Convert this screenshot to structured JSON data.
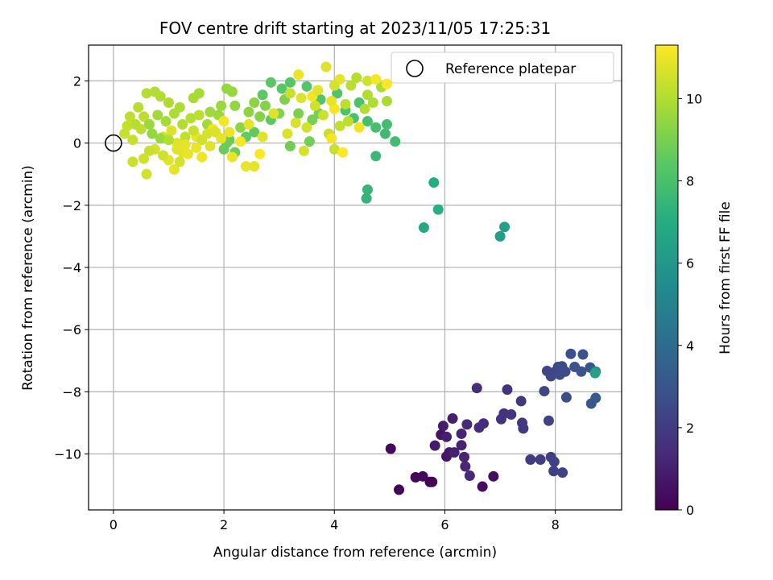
{
  "chart_data": {
    "type": "scatter",
    "title": "FOV centre drift starting at 2023/11/05 17:25:31",
    "xlabel": "Angular distance from reference (arcmin)",
    "ylabel": "Rotation from reference (arcmin)",
    "xlim": [
      -0.45,
      9.2
    ],
    "ylim": [
      -11.8,
      3.15
    ],
    "xticks": [
      0,
      2,
      4,
      6,
      8
    ],
    "yticks": [
      -10,
      -8,
      -6,
      -4,
      -2,
      0,
      2
    ],
    "grid": true,
    "legend": {
      "placement": "top-right",
      "entries": [
        "Reference platepar"
      ]
    },
    "colorbar": {
      "label": "Hours from first FF file",
      "min": 0,
      "max": 11.3,
      "ticks": [
        0,
        2,
        4,
        6,
        8,
        10
      ],
      "colormap": "viridis"
    },
    "reference_point": {
      "x": 0,
      "y": 0
    },
    "series": [
      {
        "points": [
          [
            5.17,
            -11.15,
            0.05
          ],
          [
            5.73,
            -10.9,
            0.1
          ],
          [
            5.77,
            -10.9,
            0.12
          ],
          [
            5.47,
            -10.75,
            0.2
          ],
          [
            5.6,
            -10.72,
            0.25
          ],
          [
            6.68,
            -11.05,
            0.4
          ],
          [
            6.88,
            -10.72,
            0.45
          ],
          [
            5.02,
            -9.83,
            0.3
          ],
          [
            5.93,
            -9.38,
            0.6
          ],
          [
            6.03,
            -10.08,
            0.7
          ],
          [
            6.08,
            -9.95,
            0.75
          ],
          [
            5.82,
            -9.73,
            0.8
          ],
          [
            5.97,
            -9.1,
            0.9
          ],
          [
            6.03,
            -9.45,
            0.95
          ],
          [
            6.14,
            -8.86,
            1.0
          ],
          [
            6.17,
            -9.95,
            1.05
          ],
          [
            6.3,
            -9.72,
            1.1
          ],
          [
            6.3,
            -9.35,
            1.15
          ],
          [
            6.35,
            -10.1,
            1.2
          ],
          [
            6.37,
            -10.4,
            1.25
          ],
          [
            6.45,
            -10.7,
            1.3
          ],
          [
            6.4,
            -9.05,
            1.35
          ],
          [
            6.58,
            -7.88,
            1.4
          ],
          [
            6.62,
            -9.15,
            1.45
          ],
          [
            6.7,
            -9.02,
            1.5
          ],
          [
            7.02,
            -8.88,
            1.6
          ],
          [
            7.07,
            -8.7,
            1.65
          ],
          [
            7.13,
            -7.93,
            1.7
          ],
          [
            7.2,
            -8.73,
            1.75
          ],
          [
            7.38,
            -8.3,
            1.8
          ],
          [
            7.4,
            -9.0,
            1.85
          ],
          [
            7.42,
            -9.18,
            1.9
          ],
          [
            7.55,
            -10.18,
            2.0
          ],
          [
            7.73,
            -10.18,
            2.05
          ],
          [
            7.92,
            -10.1,
            2.1
          ],
          [
            7.97,
            -10.55,
            2.15
          ],
          [
            7.98,
            -10.25,
            2.2
          ],
          [
            8.13,
            -10.6,
            2.25
          ],
          [
            7.88,
            -8.93,
            2.3
          ],
          [
            7.8,
            -7.98,
            2.35
          ],
          [
            7.85,
            -7.33,
            2.4
          ],
          [
            7.92,
            -7.5,
            2.45
          ],
          [
            8.0,
            -7.35,
            2.5
          ],
          [
            8.05,
            -7.2,
            2.55
          ],
          [
            8.08,
            -7.45,
            2.6
          ],
          [
            8.12,
            -7.18,
            2.65
          ],
          [
            8.18,
            -7.35,
            2.7
          ],
          [
            8.2,
            -8.18,
            2.75
          ],
          [
            8.28,
            -6.78,
            2.8
          ],
          [
            8.35,
            -7.2,
            2.85
          ],
          [
            8.47,
            -7.35,
            2.9
          ],
          [
            8.5,
            -6.8,
            2.95
          ],
          [
            8.63,
            -7.22,
            3.0
          ],
          [
            8.65,
            -8.38,
            3.05
          ],
          [
            8.73,
            -8.2,
            3.1
          ],
          [
            8.73,
            -7.35,
            5.4
          ],
          [
            8.72,
            -7.4,
            6.5
          ],
          [
            7.0,
            -3.0,
            6.3
          ],
          [
            7.08,
            -2.7,
            6.4
          ],
          [
            5.62,
            -2.72,
            6.8
          ],
          [
            5.8,
            -1.27,
            7.0
          ],
          [
            5.88,
            -2.14,
            7.1
          ],
          [
            4.58,
            -1.78,
            7.4
          ],
          [
            4.6,
            -1.5,
            7.5
          ],
          [
            4.75,
            -0.42,
            7.6
          ],
          [
            4.92,
            0.3,
            7.7
          ],
          [
            5.1,
            0.05,
            7.8
          ],
          [
            4.95,
            0.6,
            7.85
          ],
          [
            4.75,
            0.5,
            7.9
          ],
          [
            4.6,
            0.7,
            7.95
          ],
          [
            4.35,
            0.8,
            8.0
          ],
          [
            4.45,
            1.3,
            8.05
          ],
          [
            4.2,
            1.05,
            8.1
          ],
          [
            4.05,
            1.6,
            8.15
          ],
          [
            3.75,
            1.4,
            8.2
          ],
          [
            3.5,
            1.82,
            8.25
          ],
          [
            3.2,
            1.95,
            8.3
          ],
          [
            3.05,
            1.75,
            8.35
          ],
          [
            2.85,
            1.95,
            8.4
          ],
          [
            2.7,
            1.55,
            8.45
          ],
          [
            2.85,
            0.75,
            8.5
          ],
          [
            2.55,
            0.35,
            8.55
          ],
          [
            2.4,
            0.2,
            8.6
          ],
          [
            2.1,
            0.1,
            8.65
          ],
          [
            2.0,
            -0.2,
            8.7
          ],
          [
            2.05,
            0.0,
            8.75
          ],
          [
            2.2,
            -0.3,
            8.8
          ],
          [
            3.2,
            -0.1,
            8.85
          ],
          [
            3.55,
            0.05,
            8.9
          ],
          [
            3.72,
            0.95,
            8.95
          ],
          [
            3.6,
            0.75,
            9.0
          ],
          [
            3.35,
            0.95,
            9.05
          ],
          [
            3.1,
            1.4,
            9.1
          ],
          [
            3.0,
            0.95,
            9.15
          ],
          [
            2.75,
            1.2,
            9.2
          ],
          [
            2.65,
            0.85,
            9.25
          ],
          [
            2.3,
            0.5,
            9.3
          ],
          [
            2.55,
            1.3,
            9.35
          ],
          [
            2.45,
            1.0,
            9.4
          ],
          [
            2.2,
            1.2,
            9.45
          ],
          [
            2.05,
            1.75,
            9.5
          ],
          [
            2.15,
            1.65,
            9.55
          ],
          [
            1.95,
            1.2,
            9.6
          ],
          [
            1.9,
            0.9,
            9.65
          ],
          [
            1.75,
            1.0,
            9.7
          ],
          [
            1.7,
            0.6,
            9.75
          ],
          [
            1.55,
            1.6,
            9.8
          ],
          [
            1.45,
            1.45,
            9.85
          ],
          [
            1.2,
            1.15,
            9.9
          ],
          [
            1.0,
            1.3,
            9.95
          ],
          [
            0.85,
            1.5,
            10.0
          ],
          [
            0.75,
            1.65,
            10.05
          ],
          [
            0.6,
            1.6,
            10.1
          ],
          [
            0.45,
            1.15,
            10.15
          ],
          [
            0.55,
            0.85,
            10.2
          ],
          [
            0.3,
            0.85,
            10.25
          ],
          [
            0.25,
            0.55,
            10.3
          ],
          [
            0.2,
            0.3,
            10.35
          ],
          [
            0.35,
            0.1,
            10.4
          ],
          [
            0.35,
            -0.6,
            10.45
          ],
          [
            0.55,
            -0.5,
            10.5
          ],
          [
            0.6,
            -1.0,
            10.55
          ],
          [
            0.75,
            -0.2,
            10.6
          ],
          [
            0.9,
            0.2,
            10.65
          ],
          [
            1.05,
            0.4,
            10.7
          ],
          [
            1.15,
            0.0,
            10.75
          ],
          [
            1.25,
            -0.3,
            10.8
          ],
          [
            1.0,
            -0.55,
            10.85
          ],
          [
            1.1,
            -0.85,
            10.9
          ],
          [
            1.35,
            -0.35,
            10.95
          ],
          [
            1.5,
            0.2,
            11.0
          ],
          [
            1.6,
            -0.45,
            11.05
          ],
          [
            1.8,
            0.45,
            11.1
          ],
          [
            2.0,
            0.7,
            11.15
          ],
          [
            2.3,
            0.05,
            11.2
          ],
          [
            2.65,
            -0.35,
            11.25
          ],
          [
            2.15,
            -0.45,
            11.0
          ],
          [
            2.4,
            -0.75,
            10.95
          ],
          [
            2.55,
            -0.75,
            10.9
          ],
          [
            2.45,
            0.6,
            10.85
          ],
          [
            2.7,
            0.2,
            10.8
          ],
          [
            2.9,
            0.95,
            10.75
          ],
          [
            3.15,
            0.3,
            10.7
          ],
          [
            3.3,
            0.65,
            10.65
          ],
          [
            3.45,
            -0.25,
            10.6
          ],
          [
            3.5,
            0.5,
            10.55
          ],
          [
            3.65,
            1.2,
            10.5
          ],
          [
            3.8,
            0.9,
            10.45
          ],
          [
            3.9,
            0.3,
            10.4
          ],
          [
            4.0,
            -0.2,
            10.35
          ],
          [
            4.1,
            0.55,
            10.3
          ],
          [
            4.2,
            1.25,
            10.25
          ],
          [
            4.25,
            0.7,
            10.2
          ],
          [
            4.3,
            1.85,
            10.15
          ],
          [
            4.4,
            2.1,
            10.1
          ],
          [
            4.55,
            1.1,
            10.05
          ],
          [
            4.6,
            1.55,
            10.0
          ],
          [
            4.7,
            1.3,
            9.95
          ],
          [
            4.85,
            1.8,
            9.9
          ],
          [
            4.95,
            1.35,
            9.85
          ],
          [
            4.6,
            2.0,
            10.5
          ],
          [
            4.1,
            2.05,
            10.9
          ],
          [
            3.85,
            2.45,
            10.8
          ],
          [
            3.35,
            2.2,
            11.0
          ],
          [
            3.6,
            1.5,
            11.1
          ],
          [
            4.0,
            1.1,
            11.2
          ],
          [
            4.15,
            -0.3,
            11.25
          ],
          [
            3.95,
            0.15,
            11.15
          ],
          [
            4.45,
            0.5,
            11.05
          ],
          [
            3.95,
            1.35,
            10.95
          ],
          [
            3.7,
            1.7,
            10.85
          ],
          [
            3.4,
            1.45,
            10.75
          ],
          [
            4.95,
            1.9,
            11.3
          ],
          [
            4.75,
            2.05,
            11.2
          ],
          [
            4.0,
            1.85,
            10.6
          ],
          [
            3.2,
            1.6,
            10.4
          ],
          [
            0.8,
            0.9,
            9.7
          ],
          [
            0.95,
            0.7,
            9.8
          ],
          [
            1.1,
            0.95,
            9.9
          ],
          [
            1.25,
            0.6,
            10.0
          ],
          [
            1.4,
            0.8,
            10.1
          ],
          [
            1.55,
            0.9,
            10.2
          ],
          [
            0.65,
            0.6,
            9.6
          ],
          [
            0.7,
            0.3,
            9.5
          ],
          [
            0.85,
            0.15,
            9.6
          ],
          [
            1.3,
            0.2,
            10.3
          ],
          [
            1.45,
            0.4,
            10.4
          ],
          [
            1.6,
            0.1,
            10.5
          ],
          [
            1.7,
            0.3,
            10.6
          ],
          [
            1.85,
            0.35,
            10.7
          ],
          [
            1.15,
            -0.2,
            10.8
          ],
          [
            1.3,
            -0.05,
            10.9
          ],
          [
            1.5,
            -0.15,
            11.0
          ],
          [
            1.2,
            -0.6,
            10.6
          ],
          [
            0.9,
            -0.4,
            10.5
          ],
          [
            0.65,
            -0.25,
            10.4
          ],
          [
            0.5,
            0.45,
            10.2
          ],
          [
            0.4,
            0.6,
            10.1
          ],
          [
            1.0,
            0.1,
            10.0
          ],
          [
            1.75,
            -0.1,
            10.8
          ],
          [
            1.95,
            0.15,
            10.9
          ],
          [
            2.1,
            0.35,
            11.0
          ]
        ]
      }
    ]
  }
}
